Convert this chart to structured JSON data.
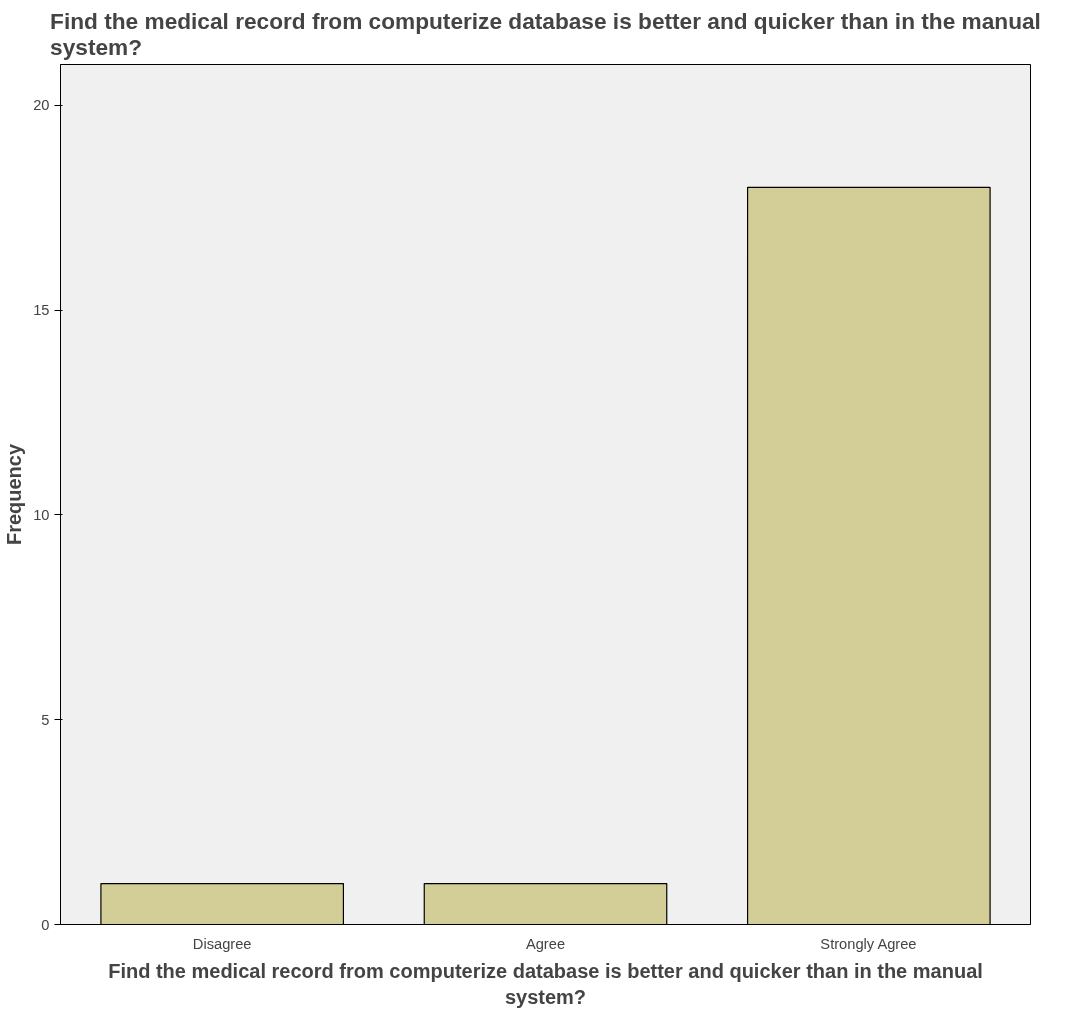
{
  "chart_data": {
    "type": "bar",
    "title": "Find the medical record from computerize database is better and quicker than in the manual system?",
    "xlabel": "Find the medical record from computerize database is better and quicker than in the manual system?",
    "ylabel": "Frequency",
    "categories": [
      "Disagree",
      "Agree",
      "Strongly Agree"
    ],
    "values": [
      1,
      1,
      18
    ],
    "color": "#d3ce98",
    "ylim": [
      0,
      21
    ],
    "yticks": [
      0,
      5,
      10,
      15,
      20
    ],
    "grid": false
  }
}
